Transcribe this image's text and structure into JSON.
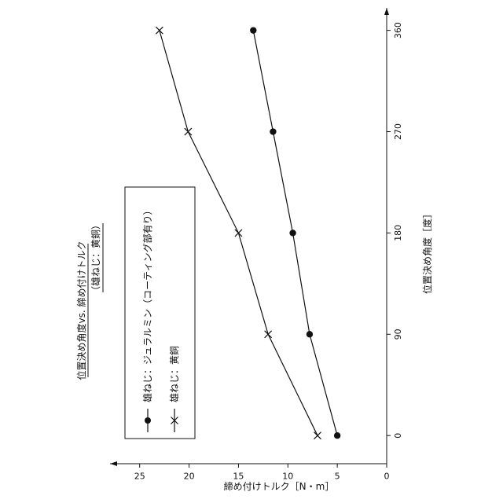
{
  "chart_data": {
    "type": "line",
    "title": "位置決め角度vs. 締め付けトルク",
    "subtitle": "（雄ねじ：黄銅）",
    "xlabel": "位置決め角度［度］",
    "ylabel": "締め付けトルク［N・m］",
    "x_ticks": [
      0,
      90,
      180,
      270,
      360
    ],
    "y_ticks": [
      0,
      5,
      10,
      15,
      20,
      25
    ],
    "xlim": [
      -25,
      380
    ],
    "ylim": [
      0,
      28
    ],
    "grid": false,
    "legend_position": "top-left",
    "series": [
      {
        "name": "雄ねじ：ジュラルミン（コーティング部有り）",
        "marker": "circle",
        "x": [
          0,
          90,
          180,
          270,
          360
        ],
        "y": [
          5,
          7.8,
          9.5,
          11.5,
          13.5
        ]
      },
      {
        "name": "雄ねじ：黄銅",
        "marker": "x",
        "x": [
          0,
          90,
          180,
          270,
          360
        ],
        "y": [
          7,
          12,
          15,
          20.1,
          23
        ]
      }
    ]
  },
  "colors": {
    "ink": "#111111",
    "background": "#ffffff"
  }
}
